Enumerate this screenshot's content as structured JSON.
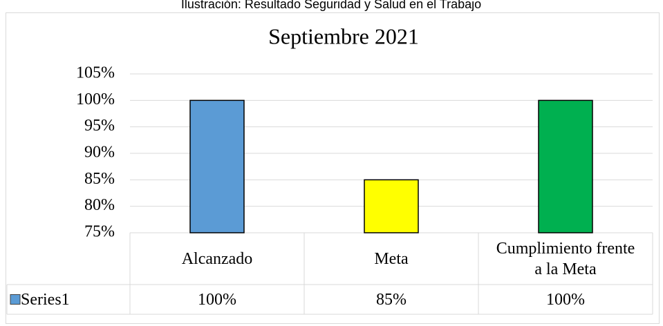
{
  "chart_data": {
    "type": "bar",
    "caption": "Ilustración: Resultado Seguridad y Salud en el Trabajo",
    "title": "Septiembre 2021",
    "categories": [
      "Alcanzado",
      "Meta",
      "Cumplimiento frente a la Meta"
    ],
    "series": [
      {
        "name": "Series1",
        "colors": [
          "#5b9bd5",
          "#ffff00",
          "#00b050"
        ],
        "values": [
          100,
          85,
          100
        ],
        "value_labels": [
          "100%",
          "85%",
          "100%"
        ]
      }
    ],
    "ylim": [
      75,
      105
    ],
    "yticks": [
      {
        "value": 75,
        "label": "75%"
      },
      {
        "value": 80,
        "label": "80%"
      },
      {
        "value": 85,
        "label": "85%"
      },
      {
        "value": 90,
        "label": "90%"
      },
      {
        "value": 95,
        "label": "95%"
      },
      {
        "value": 100,
        "label": "100%"
      },
      {
        "value": 105,
        "label": "105%"
      }
    ],
    "grid": true,
    "data_table": true
  }
}
